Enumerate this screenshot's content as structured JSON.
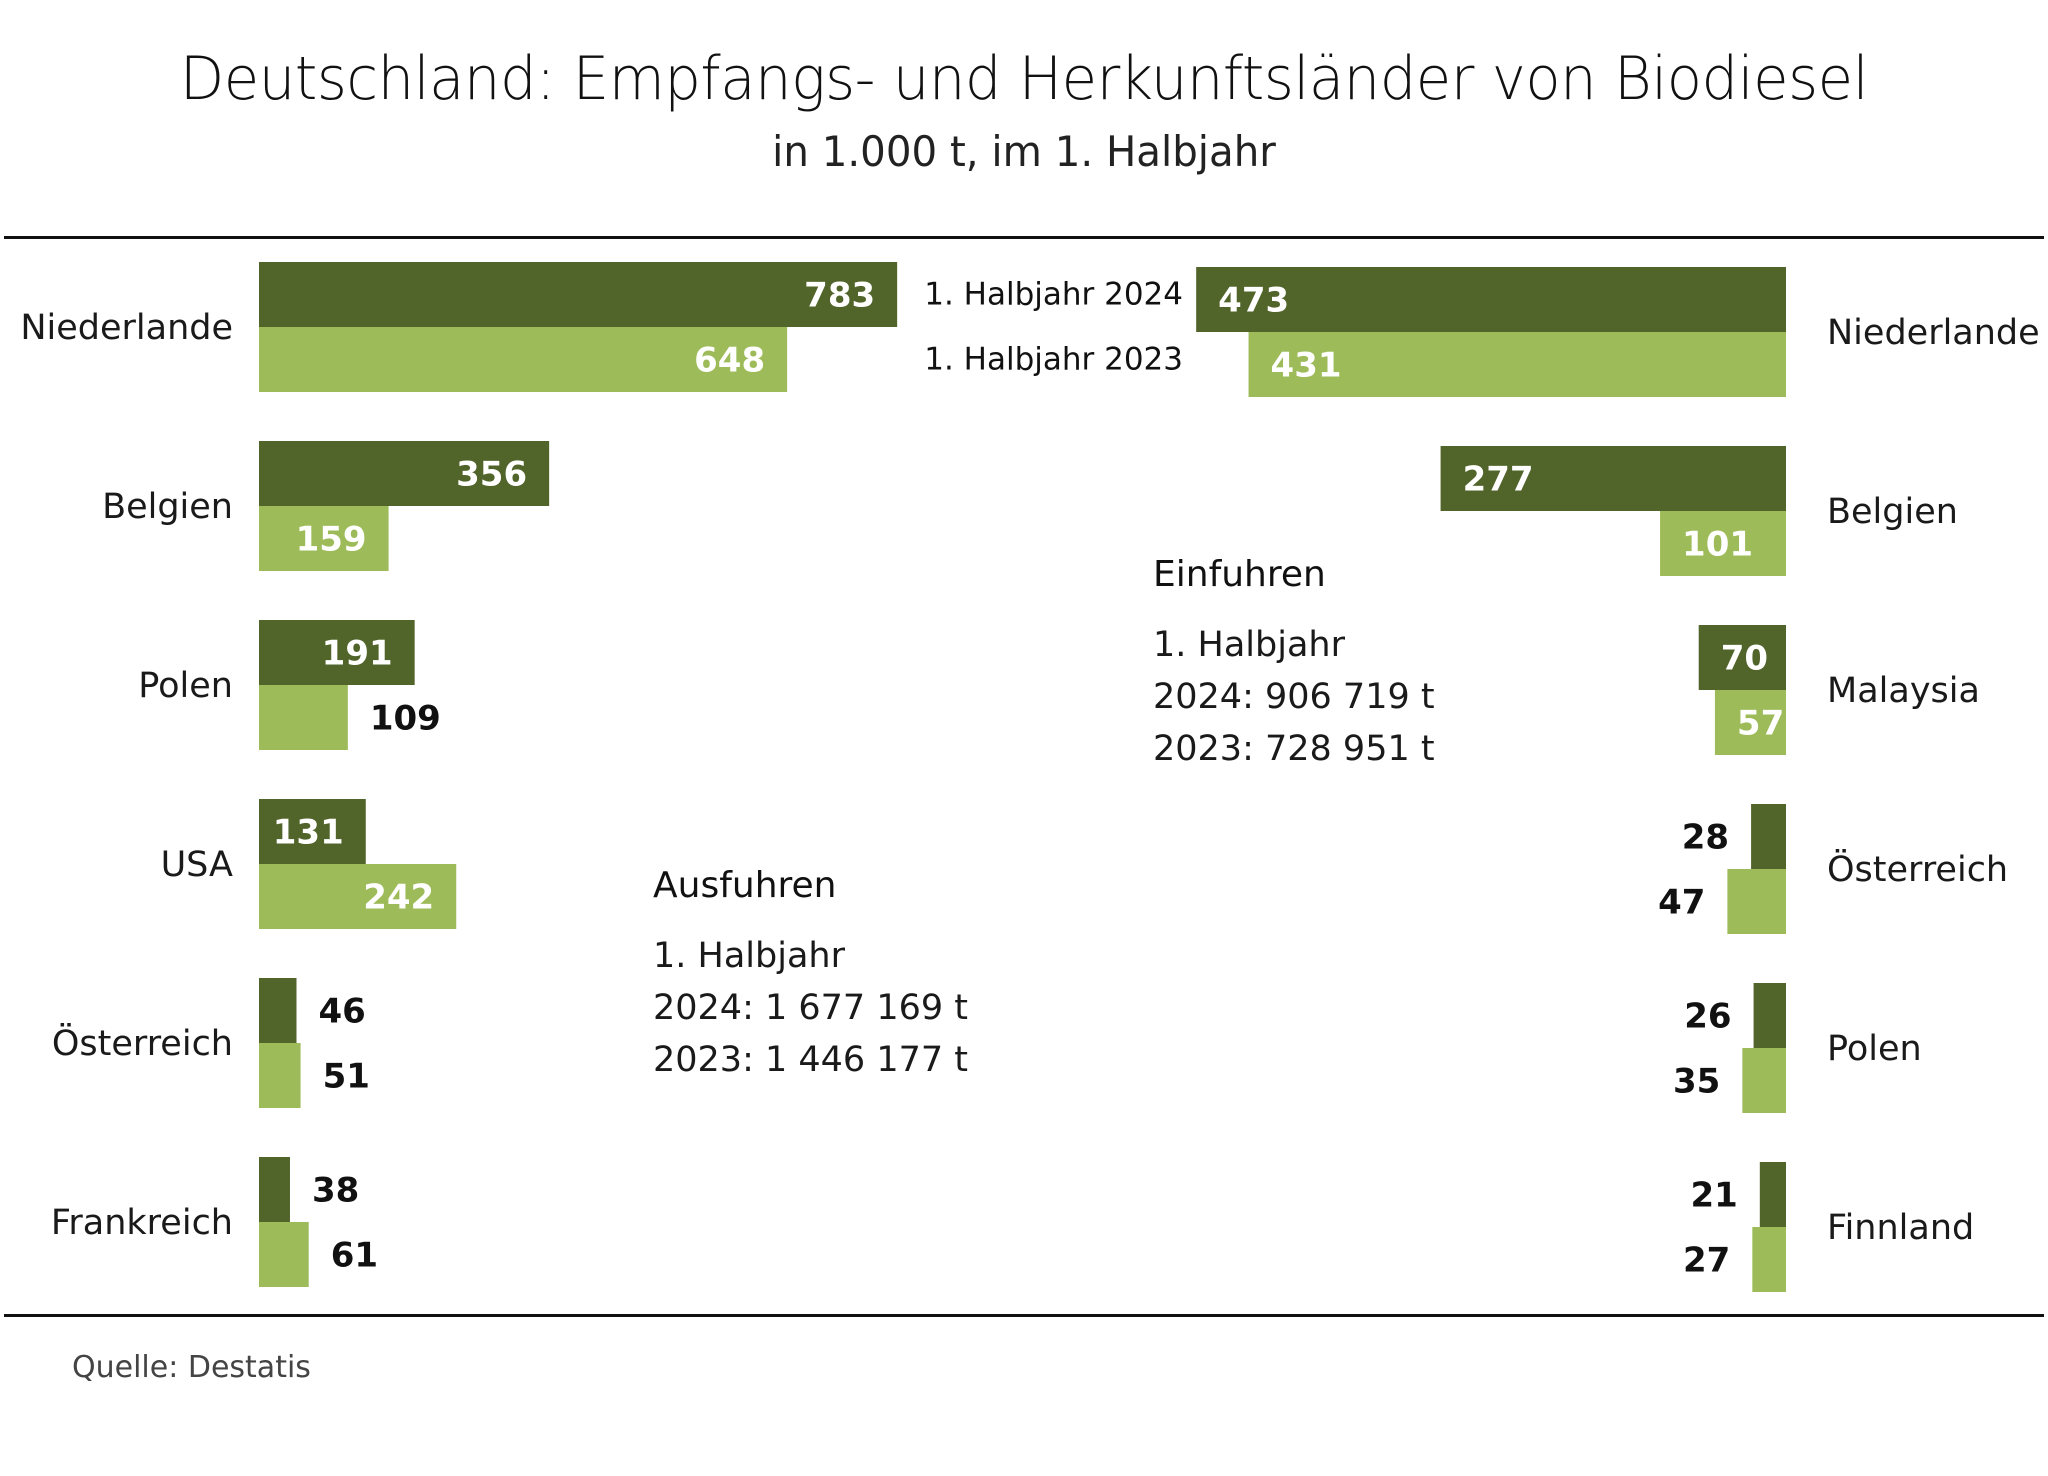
{
  "chart_data": {
    "type": "bar",
    "title": "Deutschland: Empfangs- und Herkunftsländer von Biodiesel",
    "subtitle": "in 1.000 t, im 1. Halbjahr",
    "unit": "1.000 t",
    "legend": [
      {
        "name": "1. Halbjahr 2024",
        "color": "#51642A"
      },
      {
        "name": "1. Halbjahr 2023",
        "color": "#9DBB59"
      }
    ],
    "legend_placement": "top-center",
    "exports": {
      "heading": "Ausfuhren",
      "period": "1. Halbjahr",
      "total_2024": "2024: 1 677 169 t",
      "total_2023": "2023: 1 446 177 t",
      "categories": [
        "Niederlande",
        "Belgien",
        "Polen",
        "USA",
        "Österreich",
        "Frankreich"
      ],
      "series": [
        {
          "name": "1. Halbjahr 2024",
          "values": [
            783,
            356,
            191,
            131,
            46,
            38
          ]
        },
        {
          "name": "1. Halbjahr 2023",
          "values": [
            648,
            159,
            109,
            242,
            51,
            61
          ]
        }
      ]
    },
    "imports": {
      "heading": "Einfuhren",
      "period": "1. Halbjahr",
      "total_2024": "2024: 906 719 t",
      "total_2023": "2023: 728 951 t",
      "categories": [
        "Niederlande",
        "Belgien",
        "Malaysia",
        "Österreich",
        "Polen",
        "Finnland"
      ],
      "series": [
        {
          "name": "1. Halbjahr 2024",
          "values": [
            473,
            277,
            70,
            28,
            26,
            21
          ]
        },
        {
          "name": "1. Halbjahr 2023",
          "values": [
            431,
            101,
            57,
            47,
            35,
            27
          ]
        }
      ]
    },
    "source": "Quelle:  Destatis"
  }
}
